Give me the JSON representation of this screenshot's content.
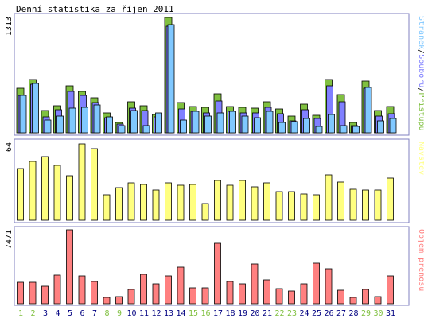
{
  "chart_data": [
    {
      "type": "bar",
      "title": "Denní statistika za říjen 2011",
      "ymax_label": "1313",
      "legend": [
        "Přístupů",
        "Souborů",
        "Stránek"
      ],
      "legend_separator": "/",
      "categories": [
        "1",
        "2",
        "3",
        "4",
        "5",
        "6",
        "7",
        "8",
        "9",
        "10",
        "11",
        "12",
        "13",
        "14",
        "15",
        "16",
        "17",
        "18",
        "19",
        "20",
        "21",
        "22",
        "23",
        "24",
        "25",
        "26",
        "27",
        "28",
        "29",
        "30",
        "31"
      ],
      "series": [
        {
          "name": "Přístupů",
          "color": "#80c040",
          "values": [
            509,
            609,
            258,
            307,
            538,
            475,
            395,
            225,
            121,
            351,
            306,
            210,
            1313,
            340,
            303,
            287,
            444,
            298,
            290,
            285,
            355,
            274,
            193,
            322,
            197,
            604,
            435,
            117,
            589,
            257,
            300
          ]
        },
        {
          "name": "Souborů",
          "color": "#8080ff",
          "values": [
            430,
            550,
            181,
            260,
            474,
            425,
            340,
            169,
            98,
            283,
            257,
            178,
            1213,
            272,
            246,
            230,
            358,
            242,
            230,
            230,
            286,
            215,
            136,
            262,
            164,
            530,
            356,
            82,
            509,
            190,
            215
          ]
        },
        {
          "name": "Stránek",
          "color": "#80c8ff",
          "values": [
            430,
            560,
            142,
            194,
            277,
            287,
            317,
            178,
            80,
            254,
            78,
            225,
            1230,
            147,
            249,
            190,
            227,
            249,
            194,
            171,
            241,
            117,
            130,
            165,
            76,
            208,
            78,
            72,
            515,
            136,
            160
          ]
        }
      ]
    },
    {
      "type": "bar",
      "ymax_label": "64",
      "legend": [
        "Návštěv"
      ],
      "categories": [
        "1",
        "2",
        "3",
        "4",
        "5",
        "6",
        "7",
        "8",
        "9",
        "10",
        "11",
        "12",
        "13",
        "14",
        "15",
        "16",
        "17",
        "18",
        "19",
        "20",
        "21",
        "22",
        "23",
        "24",
        "25",
        "26",
        "27",
        "28",
        "29",
        "30",
        "31"
      ],
      "series": [
        {
          "name": "Návštěv",
          "color": "#ffff80",
          "values": [
            43,
            49,
            53,
            46,
            37,
            64,
            60,
            21,
            27,
            31,
            30,
            25,
            31,
            29,
            30,
            14,
            33,
            29,
            33,
            28,
            31,
            24,
            24,
            22,
            21,
            38,
            32,
            26,
            25,
            25,
            35
          ]
        }
      ]
    },
    {
      "type": "bar",
      "ymax_label": "7471",
      "legend": [
        "Objem přenosu"
      ],
      "categories": [
        "1",
        "2",
        "3",
        "4",
        "5",
        "6",
        "7",
        "8",
        "9",
        "10",
        "11",
        "12",
        "13",
        "14",
        "15",
        "16",
        "17",
        "18",
        "19",
        "20",
        "21",
        "22",
        "23",
        "24",
        "25",
        "26",
        "27",
        "28",
        "29",
        "30",
        "31"
      ],
      "series": [
        {
          "name": "Objem přenosu",
          "color": "#ff8080",
          "values": [
            2180,
            2130,
            1770,
            2920,
            7471,
            2850,
            2210,
            680,
            740,
            1410,
            2950,
            1980,
            2850,
            3700,
            1630,
            1630,
            6130,
            2240,
            2010,
            3990,
            2450,
            1500,
            1300,
            1970,
            4080,
            3520,
            1360,
            680,
            1410,
            730,
            2820
          ]
        }
      ]
    }
  ],
  "weekend_days": [
    "1",
    "2",
    "8",
    "9",
    "15",
    "16",
    "22",
    "23",
    "29",
    "30"
  ],
  "colors": {
    "frame": "#8080c0",
    "weekday_label": "#000080",
    "weekend_label": "#80c040",
    "bar_outline": "#000000"
  }
}
